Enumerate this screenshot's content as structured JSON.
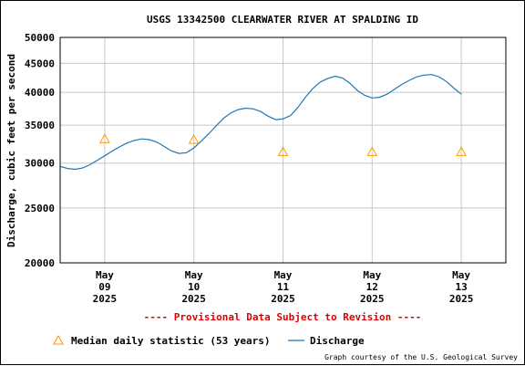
{
  "chart_data": {
    "type": "line",
    "title": "USGS 13342500 CLEARWATER RIVER AT SPALDING ID",
    "ylabel": "Discharge, cubic feet per second",
    "y_scale": "log",
    "ylim": [
      20000,
      50000
    ],
    "yticks": [
      20000,
      25000,
      30000,
      35000,
      40000,
      45000,
      50000
    ],
    "xlim": [
      "2025-05-08 12:00",
      "2025-05-13 12:00"
    ],
    "xticks": [
      {
        "month": "May",
        "day": "09",
        "year": "2025"
      },
      {
        "month": "May",
        "day": "10",
        "year": "2025"
      },
      {
        "month": "May",
        "day": "11",
        "year": "2025"
      },
      {
        "month": "May",
        "day": "12",
        "year": "2025"
      },
      {
        "month": "May",
        "day": "13",
        "year": "2025"
      }
    ],
    "grid": true,
    "series": [
      {
        "name": "Discharge",
        "color": "#1f77b4",
        "points": [
          [
            "2025-05-08 12:00",
            29600
          ],
          [
            "2025-05-08 14:00",
            29350
          ],
          [
            "2025-05-08 16:00",
            29250
          ],
          [
            "2025-05-08 18:00",
            29400
          ],
          [
            "2025-05-08 20:00",
            29800
          ],
          [
            "2025-05-08 22:00",
            30350
          ],
          [
            "2025-05-09 00:00",
            30900
          ],
          [
            "2025-05-09 02:00",
            31500
          ],
          [
            "2025-05-09 04:00",
            32050
          ],
          [
            "2025-05-09 06:00",
            32550
          ],
          [
            "2025-05-09 08:00",
            32900
          ],
          [
            "2025-05-09 10:00",
            33100
          ],
          [
            "2025-05-09 12:00",
            33000
          ],
          [
            "2025-05-09 14:00",
            32700
          ],
          [
            "2025-05-09 16:00",
            32100
          ],
          [
            "2025-05-09 18:00",
            31500
          ],
          [
            "2025-05-09 20:00",
            31200
          ],
          [
            "2025-05-09 22:00",
            31300
          ],
          [
            "2025-05-10 00:00",
            31900
          ],
          [
            "2025-05-10 02:00",
            32800
          ],
          [
            "2025-05-10 04:00",
            33800
          ],
          [
            "2025-05-10 06:00",
            34900
          ],
          [
            "2025-05-10 08:00",
            36000
          ],
          [
            "2025-05-10 10:00",
            36800
          ],
          [
            "2025-05-10 12:00",
            37300
          ],
          [
            "2025-05-10 14:00",
            37500
          ],
          [
            "2025-05-10 16:00",
            37400
          ],
          [
            "2025-05-10 18:00",
            37000
          ],
          [
            "2025-05-10 20:00",
            36300
          ],
          [
            "2025-05-10 22:00",
            35800
          ],
          [
            "2025-05-11 00:00",
            35900
          ],
          [
            "2025-05-11 02:00",
            36400
          ],
          [
            "2025-05-11 04:00",
            37600
          ],
          [
            "2025-05-11 06:00",
            39200
          ],
          [
            "2025-05-11 08:00",
            40600
          ],
          [
            "2025-05-11 10:00",
            41700
          ],
          [
            "2025-05-11 12:00",
            42300
          ],
          [
            "2025-05-11 14:00",
            42700
          ],
          [
            "2025-05-11 16:00",
            42400
          ],
          [
            "2025-05-11 18:00",
            41500
          ],
          [
            "2025-05-11 20:00",
            40300
          ],
          [
            "2025-05-11 22:00",
            39500
          ],
          [
            "2025-05-12 00:00",
            39100
          ],
          [
            "2025-05-12 02:00",
            39200
          ],
          [
            "2025-05-12 04:00",
            39700
          ],
          [
            "2025-05-12 06:00",
            40500
          ],
          [
            "2025-05-12 08:00",
            41300
          ],
          [
            "2025-05-12 10:00",
            42000
          ],
          [
            "2025-05-12 12:00",
            42600
          ],
          [
            "2025-05-12 14:00",
            42900
          ],
          [
            "2025-05-12 16:00",
            43000
          ],
          [
            "2025-05-12 18:00",
            42600
          ],
          [
            "2025-05-12 20:00",
            41800
          ],
          [
            "2025-05-12 22:00",
            40700
          ],
          [
            "2025-05-13 00:00",
            39700
          ]
        ]
      },
      {
        "name": "Median daily statistic (53 years)",
        "marker": "triangle",
        "color": "#ff9900",
        "points": [
          [
            "2025-05-09 00:00",
            33100
          ],
          [
            "2025-05-10 00:00",
            33000
          ],
          [
            "2025-05-11 00:00",
            31400
          ],
          [
            "2025-05-12 00:00",
            31400
          ],
          [
            "2025-05-13 00:00",
            31400
          ]
        ]
      }
    ],
    "legend_position": "bottom"
  },
  "notice": "---- Provisional Data Subject to Revision ----",
  "credit": "Graph courtesy of the U.S. Geological Survey"
}
